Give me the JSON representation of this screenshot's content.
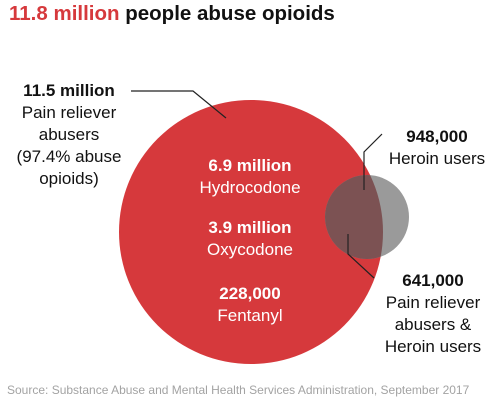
{
  "title": {
    "highlight": "11.8 million",
    "rest": "people abuse opioids"
  },
  "labels": {
    "pain_relievers": {
      "value": "11.5 million",
      "lines": [
        "Pain reliever",
        "abusers",
        "(97.4% abuse",
        "opioids)"
      ]
    },
    "heroin": {
      "value": "948,000",
      "lines": [
        "Heroin users"
      ]
    },
    "overlap": {
      "value": "641,000",
      "lines": [
        "Pain reliever",
        "abusers &",
        "Heroin users"
      ]
    }
  },
  "breakdown": [
    {
      "value": "6.9 million",
      "name": "Hydrocodone"
    },
    {
      "value": "3.9 million",
      "name": "Oxycodone"
    },
    {
      "value": "228,000",
      "name": "Fentanyl"
    }
  ],
  "source": "Source: Substance Abuse and Mental Health Services Administration, September 2017",
  "colors": {
    "accent": "#d6393c",
    "heroin_circle": "#9a9a9a",
    "overlap": "#7c5253",
    "text": "#111111",
    "source_text": "#a3a3a3"
  }
}
